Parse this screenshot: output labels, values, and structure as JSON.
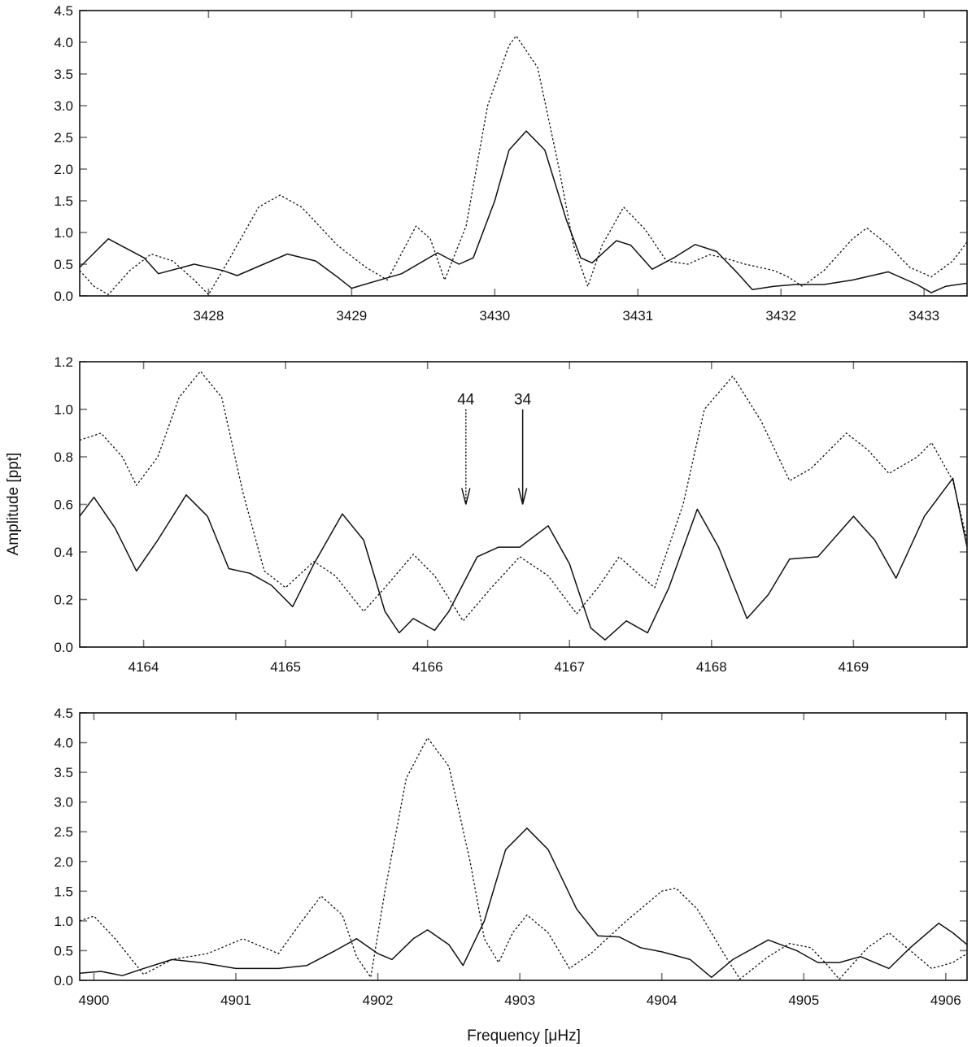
{
  "figure": {
    "ylabel": "Amplitude [ppt]",
    "xlabel": "Frequency [μHz]"
  },
  "chart_data": [
    {
      "type": "line",
      "xlim": [
        3427.1,
        3433.3
      ],
      "ylim": [
        0,
        4.5
      ],
      "x_ticks": [
        3428,
        3429,
        3430,
        3431,
        3432,
        3433
      ],
      "y_ticks": [
        0.0,
        0.5,
        1.0,
        1.5,
        2.0,
        2.5,
        3.0,
        3.5,
        4.0,
        4.5
      ],
      "grid": false,
      "series": [
        {
          "line_style": "solid",
          "points": [
            [
              3427.1,
              0.45
            ],
            [
              3427.3,
              0.9
            ],
            [
              3427.55,
              0.6
            ],
            [
              3427.65,
              0.35
            ],
            [
              3427.9,
              0.5
            ],
            [
              3428.1,
              0.4
            ],
            [
              3428.2,
              0.32
            ],
            [
              3428.55,
              0.66
            ],
            [
              3428.75,
              0.55
            ],
            [
              3428.9,
              0.3
            ],
            [
              3429.0,
              0.12
            ],
            [
              3429.15,
              0.22
            ],
            [
              3429.35,
              0.35
            ],
            [
              3429.6,
              0.68
            ],
            [
              3429.75,
              0.5
            ],
            [
              3429.85,
              0.6
            ],
            [
              3430.0,
              1.5
            ],
            [
              3430.1,
              2.3
            ],
            [
              3430.22,
              2.6
            ],
            [
              3430.35,
              2.3
            ],
            [
              3430.5,
              1.2
            ],
            [
              3430.6,
              0.6
            ],
            [
              3430.68,
              0.52
            ],
            [
              3430.85,
              0.87
            ],
            [
              3430.95,
              0.8
            ],
            [
              3431.1,
              0.42
            ],
            [
              3431.25,
              0.6
            ],
            [
              3431.4,
              0.81
            ],
            [
              3431.55,
              0.7
            ],
            [
              3431.7,
              0.35
            ],
            [
              3431.8,
              0.1
            ],
            [
              3431.95,
              0.15
            ],
            [
              3432.1,
              0.18
            ],
            [
              3432.3,
              0.18
            ],
            [
              3432.5,
              0.25
            ],
            [
              3432.75,
              0.38
            ],
            [
              3432.95,
              0.18
            ],
            [
              3433.05,
              0.05
            ],
            [
              3433.15,
              0.15
            ],
            [
              3433.3,
              0.2
            ]
          ]
        },
        {
          "line_style": "dotted",
          "points": [
            [
              3427.1,
              0.4
            ],
            [
              3427.2,
              0.15
            ],
            [
              3427.3,
              0.02
            ],
            [
              3427.45,
              0.4
            ],
            [
              3427.6,
              0.66
            ],
            [
              3427.75,
              0.55
            ],
            [
              3427.9,
              0.25
            ],
            [
              3428.0,
              0.02
            ],
            [
              3428.15,
              0.6
            ],
            [
              3428.35,
              1.4
            ],
            [
              3428.5,
              1.59
            ],
            [
              3428.65,
              1.4
            ],
            [
              3428.9,
              0.8
            ],
            [
              3429.1,
              0.45
            ],
            [
              3429.25,
              0.25
            ],
            [
              3429.45,
              1.1
            ],
            [
              3429.55,
              0.9
            ],
            [
              3429.65,
              0.25
            ],
            [
              3429.8,
              1.1
            ],
            [
              3429.95,
              3.0
            ],
            [
              3430.1,
              3.95
            ],
            [
              3430.15,
              4.1
            ],
            [
              3430.3,
              3.6
            ],
            [
              3430.45,
              2.0
            ],
            [
              3430.55,
              0.8
            ],
            [
              3430.65,
              0.15
            ],
            [
              3430.75,
              0.8
            ],
            [
              3430.9,
              1.4
            ],
            [
              3431.05,
              1.05
            ],
            [
              3431.2,
              0.55
            ],
            [
              3431.35,
              0.5
            ],
            [
              3431.5,
              0.65
            ],
            [
              3431.6,
              0.6
            ],
            [
              3431.75,
              0.5
            ],
            [
              3431.95,
              0.4
            ],
            [
              3432.05,
              0.3
            ],
            [
              3432.15,
              0.15
            ],
            [
              3432.3,
              0.4
            ],
            [
              3432.5,
              0.9
            ],
            [
              3432.6,
              1.07
            ],
            [
              3432.75,
              0.8
            ],
            [
              3432.9,
              0.45
            ],
            [
              3433.05,
              0.3
            ],
            [
              3433.2,
              0.55
            ],
            [
              3433.3,
              0.85
            ]
          ]
        }
      ]
    },
    {
      "type": "line",
      "xlim": [
        4163.55,
        4169.8
      ],
      "ylim": [
        0,
        1.2
      ],
      "x_ticks": [
        4164,
        4165,
        4166,
        4167,
        4168,
        4169
      ],
      "y_ticks": [
        0.0,
        0.2,
        0.4,
        0.6,
        0.8,
        1.0,
        1.2
      ],
      "grid": false,
      "series": [
        {
          "line_style": "solid",
          "points": [
            [
              4163.55,
              0.55
            ],
            [
              4163.65,
              0.63
            ],
            [
              4163.8,
              0.5
            ],
            [
              4163.95,
              0.32
            ],
            [
              4164.1,
              0.45
            ],
            [
              4164.3,
              0.64
            ],
            [
              4164.45,
              0.55
            ],
            [
              4164.6,
              0.33
            ],
            [
              4164.75,
              0.31
            ],
            [
              4164.9,
              0.26
            ],
            [
              4165.05,
              0.17
            ],
            [
              4165.2,
              0.35
            ],
            [
              4165.4,
              0.56
            ],
            [
              4165.55,
              0.45
            ],
            [
              4165.7,
              0.15
            ],
            [
              4165.8,
              0.06
            ],
            [
              4165.9,
              0.12
            ],
            [
              4166.05,
              0.07
            ],
            [
              4166.15,
              0.15
            ],
            [
              4166.35,
              0.38
            ],
            [
              4166.5,
              0.42
            ],
            [
              4166.65,
              0.42
            ],
            [
              4166.85,
              0.51
            ],
            [
              4167.0,
              0.35
            ],
            [
              4167.15,
              0.08
            ],
            [
              4167.25,
              0.03
            ],
            [
              4167.4,
              0.11
            ],
            [
              4167.55,
              0.06
            ],
            [
              4167.7,
              0.25
            ],
            [
              4167.9,
              0.58
            ],
            [
              4168.05,
              0.42
            ],
            [
              4168.25,
              0.12
            ],
            [
              4168.4,
              0.22
            ],
            [
              4168.55,
              0.37
            ],
            [
              4168.75,
              0.38
            ],
            [
              4169.0,
              0.55
            ],
            [
              4169.15,
              0.45
            ],
            [
              4169.3,
              0.29
            ],
            [
              4169.5,
              0.55
            ],
            [
              4169.7,
              0.71
            ],
            [
              4169.8,
              0.42
            ]
          ]
        },
        {
          "line_style": "dotted",
          "points": [
            [
              4163.55,
              0.87
            ],
            [
              4163.7,
              0.9
            ],
            [
              4163.85,
              0.8
            ],
            [
              4163.95,
              0.68
            ],
            [
              4164.1,
              0.8
            ],
            [
              4164.25,
              1.05
            ],
            [
              4164.4,
              1.16
            ],
            [
              4164.55,
              1.05
            ],
            [
              4164.7,
              0.65
            ],
            [
              4164.85,
              0.32
            ],
            [
              4165.0,
              0.25
            ],
            [
              4165.2,
              0.36
            ],
            [
              4165.35,
              0.3
            ],
            [
              4165.55,
              0.15
            ],
            [
              4165.7,
              0.25
            ],
            [
              4165.9,
              0.39
            ],
            [
              4166.05,
              0.3
            ],
            [
              4166.25,
              0.11
            ],
            [
              4166.45,
              0.25
            ],
            [
              4166.65,
              0.38
            ],
            [
              4166.85,
              0.3
            ],
            [
              4167.05,
              0.14
            ],
            [
              4167.2,
              0.25
            ],
            [
              4167.35,
              0.38
            ],
            [
              4167.5,
              0.3
            ],
            [
              4167.6,
              0.25
            ],
            [
              4167.8,
              0.6
            ],
            [
              4167.95,
              1.0
            ],
            [
              4168.15,
              1.14
            ],
            [
              4168.35,
              0.95
            ],
            [
              4168.55,
              0.7
            ],
            [
              4168.7,
              0.75
            ],
            [
              4168.95,
              0.9
            ],
            [
              4169.1,
              0.83
            ],
            [
              4169.25,
              0.73
            ],
            [
              4169.45,
              0.8
            ],
            [
              4169.55,
              0.86
            ],
            [
              4169.7,
              0.7
            ],
            [
              4169.8,
              0.45
            ]
          ]
        }
      ],
      "annotations": [
        {
          "label": "44",
          "x": 4166.27,
          "y_start": 1.0,
          "y_end": 0.6,
          "line_style": "dotted"
        },
        {
          "label": "34",
          "x": 4166.67,
          "y_start": 1.0,
          "y_end": 0.6,
          "line_style": "solid"
        }
      ]
    },
    {
      "type": "line",
      "xlim": [
        4899.9,
        4906.15
      ],
      "ylim": [
        0,
        4.5
      ],
      "x_ticks": [
        4900,
        4901,
        4902,
        4903,
        4904,
        4905,
        4906
      ],
      "y_ticks": [
        0.0,
        0.5,
        1.0,
        1.5,
        2.0,
        2.5,
        3.0,
        3.5,
        4.0,
        4.5
      ],
      "grid": false,
      "series": [
        {
          "line_style": "solid",
          "points": [
            [
              4899.9,
              0.12
            ],
            [
              4900.05,
              0.15
            ],
            [
              4900.2,
              0.08
            ],
            [
              4900.35,
              0.2
            ],
            [
              4900.55,
              0.35
            ],
            [
              4900.75,
              0.3
            ],
            [
              4901.0,
              0.2
            ],
            [
              4901.3,
              0.2
            ],
            [
              4901.5,
              0.25
            ],
            [
              4901.7,
              0.5
            ],
            [
              4901.85,
              0.7
            ],
            [
              4902.0,
              0.45
            ],
            [
              4902.1,
              0.35
            ],
            [
              4902.25,
              0.7
            ],
            [
              4902.35,
              0.85
            ],
            [
              4902.5,
              0.6
            ],
            [
              4902.6,
              0.25
            ],
            [
              4902.75,
              1.0
            ],
            [
              4902.9,
              2.2
            ],
            [
              4903.05,
              2.56
            ],
            [
              4903.2,
              2.2
            ],
            [
              4903.4,
              1.2
            ],
            [
              4903.55,
              0.75
            ],
            [
              4903.7,
              0.73
            ],
            [
              4903.85,
              0.55
            ],
            [
              4904.0,
              0.48
            ],
            [
              4904.2,
              0.35
            ],
            [
              4904.35,
              0.05
            ],
            [
              4904.5,
              0.35
            ],
            [
              4904.75,
              0.68
            ],
            [
              4904.95,
              0.5
            ],
            [
              4905.1,
              0.3
            ],
            [
              4905.25,
              0.3
            ],
            [
              4905.4,
              0.4
            ],
            [
              4905.6,
              0.2
            ],
            [
              4905.75,
              0.55
            ],
            [
              4905.95,
              0.96
            ],
            [
              4906.05,
              0.8
            ],
            [
              4906.15,
              0.6
            ]
          ]
        },
        {
          "line_style": "dotted",
          "points": [
            [
              4899.9,
              1.0
            ],
            [
              4900.0,
              1.08
            ],
            [
              4900.15,
              0.7
            ],
            [
              4900.35,
              0.1
            ],
            [
              4900.55,
              0.35
            ],
            [
              4900.8,
              0.45
            ],
            [
              4901.05,
              0.7
            ],
            [
              4901.2,
              0.55
            ],
            [
              4901.3,
              0.45
            ],
            [
              4901.45,
              0.95
            ],
            [
              4901.6,
              1.42
            ],
            [
              4901.75,
              1.1
            ],
            [
              4901.85,
              0.4
            ],
            [
              4901.95,
              0.05
            ],
            [
              4902.05,
              1.5
            ],
            [
              4902.2,
              3.4
            ],
            [
              4902.35,
              4.08
            ],
            [
              4902.5,
              3.6
            ],
            [
              4902.65,
              2.0
            ],
            [
              4902.75,
              0.7
            ],
            [
              4902.85,
              0.3
            ],
            [
              4902.95,
              0.8
            ],
            [
              4903.05,
              1.1
            ],
            [
              4903.2,
              0.8
            ],
            [
              4903.35,
              0.2
            ],
            [
              4903.5,
              0.45
            ],
            [
              4903.75,
              1.0
            ],
            [
              4904.0,
              1.5
            ],
            [
              4904.1,
              1.55
            ],
            [
              4904.25,
              1.2
            ],
            [
              4904.45,
              0.4
            ],
            [
              4904.55,
              0.02
            ],
            [
              4904.75,
              0.4
            ],
            [
              4904.9,
              0.62
            ],
            [
              4905.05,
              0.55
            ],
            [
              4905.15,
              0.3
            ],
            [
              4905.25,
              0.02
            ],
            [
              4905.45,
              0.55
            ],
            [
              4905.6,
              0.8
            ],
            [
              4905.75,
              0.5
            ],
            [
              4905.9,
              0.2
            ],
            [
              4906.05,
              0.3
            ],
            [
              4906.15,
              0.45
            ]
          ]
        }
      ]
    }
  ]
}
